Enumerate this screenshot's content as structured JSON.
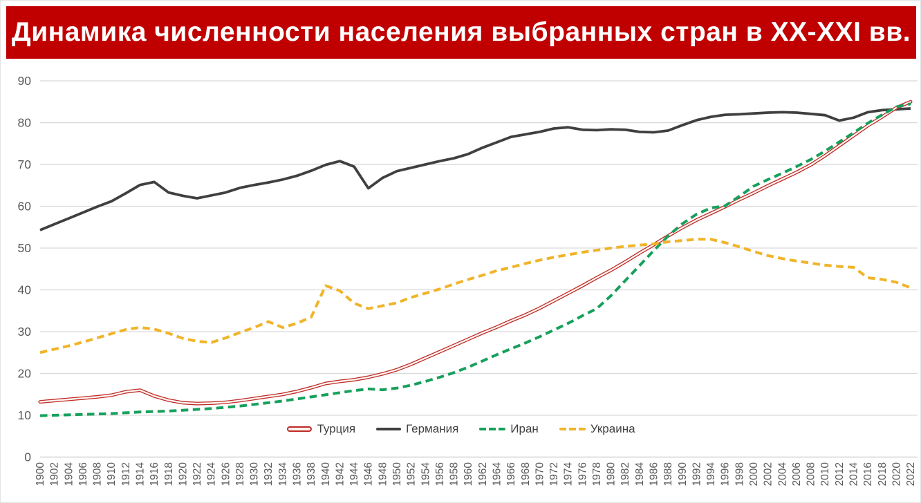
{
  "title": {
    "text": "Динамика численности населения выбранных стран в XX-XXI вв.",
    "bg_color": "#C00000",
    "text_color": "#FFFFFF"
  },
  "chart_data": {
    "type": "line",
    "title": "Динамика численности населения выбранных стран в XX-XXI вв.",
    "xlabel": "",
    "ylabel": "",
    "ylim": [
      0,
      90
    ],
    "ytick_step": 10,
    "yticks": [
      0,
      10,
      20,
      30,
      40,
      50,
      60,
      70,
      80,
      90
    ],
    "grid": true,
    "grid_color": "#D9D9D9",
    "axis_label_color": "#595959",
    "legend_position": "bottom-center",
    "x": [
      1900,
      1902,
      1904,
      1906,
      1908,
      1910,
      1912,
      1914,
      1916,
      1918,
      1920,
      1922,
      1924,
      1926,
      1928,
      1930,
      1932,
      1934,
      1936,
      1938,
      1940,
      1942,
      1944,
      1946,
      1948,
      1950,
      1952,
      1954,
      1956,
      1958,
      1960,
      1962,
      1964,
      1966,
      1968,
      1970,
      1972,
      1974,
      1976,
      1978,
      1980,
      1982,
      1984,
      1986,
      1988,
      1990,
      1992,
      1994,
      1996,
      1998,
      2000,
      2002,
      2004,
      2006,
      2008,
      2010,
      2012,
      2014,
      2016,
      2018,
      2020,
      2022
    ],
    "series": [
      {
        "name": "Турция",
        "key": "turkey",
        "color": "#BF2B25",
        "style": "double-solid",
        "values": [
          13.2,
          13.5,
          13.8,
          14.1,
          14.4,
          14.8,
          15.6,
          16.0,
          14.6,
          13.6,
          13.0,
          12.8,
          12.9,
          13.1,
          13.5,
          14.0,
          14.5,
          15.0,
          15.7,
          16.6,
          17.6,
          18.1,
          18.5,
          19.1,
          19.9,
          20.9,
          22.2,
          23.7,
          25.2,
          26.7,
          28.2,
          29.7,
          31.1,
          32.6,
          34.0,
          35.6,
          37.4,
          39.2,
          41.0,
          42.9,
          44.7,
          46.7,
          48.8,
          50.8,
          52.9,
          54.9,
          56.7,
          58.3,
          59.9,
          61.6,
          63.2,
          64.9,
          66.5,
          68.1,
          69.9,
          72.1,
          74.5,
          76.9,
          79.3,
          81.4,
          83.6,
          85.0
        ]
      },
      {
        "name": "Германия",
        "key": "germany",
        "color": "#404040",
        "style": "solid",
        "values": [
          54.3,
          55.7,
          57.1,
          58.5,
          59.9,
          61.2,
          63.1,
          65.1,
          65.8,
          63.3,
          62.5,
          61.9,
          62.6,
          63.3,
          64.4,
          65.1,
          65.7,
          66.4,
          67.3,
          68.5,
          69.9,
          70.8,
          69.5,
          64.3,
          66.8,
          68.4,
          69.2,
          70.0,
          70.8,
          71.5,
          72.5,
          74.0,
          75.3,
          76.6,
          77.2,
          77.8,
          78.6,
          78.9,
          78.3,
          78.2,
          78.4,
          78.3,
          77.8,
          77.7,
          78.1,
          79.4,
          80.6,
          81.4,
          81.9,
          82.0,
          82.2,
          82.4,
          82.5,
          82.4,
          82.1,
          81.8,
          80.5,
          81.2,
          82.5,
          83.0,
          83.2,
          83.4
        ]
      },
      {
        "name": "Иран",
        "key": "iran",
        "color": "#17A05C",
        "style": "dashed",
        "values": [
          9.9,
          10.0,
          10.1,
          10.2,
          10.3,
          10.4,
          10.6,
          10.8,
          10.9,
          11.0,
          11.2,
          11.4,
          11.6,
          11.9,
          12.2,
          12.6,
          13.0,
          13.4,
          13.9,
          14.4,
          14.9,
          15.4,
          15.9,
          16.3,
          16.1,
          16.5,
          17.2,
          18.1,
          19.1,
          20.2,
          21.5,
          23.0,
          24.5,
          25.9,
          27.3,
          28.8,
          30.4,
          32.0,
          33.8,
          35.5,
          38.6,
          42.2,
          45.8,
          49.4,
          52.9,
          55.8,
          58.1,
          59.6,
          60.1,
          62.4,
          64.8,
          66.4,
          67.9,
          69.5,
          71.2,
          73.2,
          75.4,
          77.6,
          79.9,
          81.9,
          83.8,
          84.5
        ]
      },
      {
        "name": "Украина",
        "key": "ukraine",
        "color": "#F0B429",
        "style": "dashed",
        "values": [
          25.0,
          25.8,
          26.6,
          27.5,
          28.5,
          29.5,
          30.5,
          31.0,
          30.6,
          29.6,
          28.4,
          27.7,
          27.4,
          28.5,
          29.8,
          31.0,
          32.4,
          31.0,
          32.0,
          33.5,
          41.0,
          39.8,
          36.8,
          35.5,
          36.2,
          36.9,
          38.2,
          39.2,
          40.2,
          41.4,
          42.5,
          43.5,
          44.6,
          45.4,
          46.3,
          47.1,
          47.8,
          48.4,
          49.0,
          49.5,
          50.0,
          50.4,
          50.7,
          51.0,
          51.5,
          51.8,
          52.1,
          52.1,
          51.3,
          50.3,
          49.2,
          48.2,
          47.5,
          46.9,
          46.4,
          45.9,
          45.6,
          45.4,
          42.9,
          42.5,
          41.8,
          40.5
        ]
      }
    ]
  }
}
